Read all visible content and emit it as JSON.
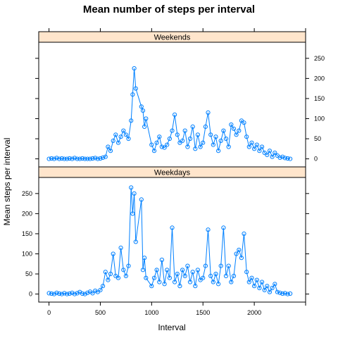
{
  "chart_data": {
    "type": "line",
    "title": "Mean number of steps per interval",
    "xlabel": "Interval",
    "ylabel": "Mean steps per interval",
    "xlim": [
      -100,
      2500
    ],
    "ylim": [
      -20,
      290
    ],
    "x_ticks": [
      0,
      500,
      1000,
      1500,
      2000
    ],
    "y_ticks": [
      0,
      50,
      100,
      150,
      200,
      250
    ],
    "grid": false,
    "strip_color": "#ffe5cc",
    "series_color": "#0080ff",
    "panels": [
      {
        "name": "Weekends",
        "x": [
          0,
          25,
          50,
          75,
          100,
          125,
          150,
          175,
          200,
          225,
          250,
          275,
          300,
          325,
          350,
          375,
          400,
          425,
          450,
          475,
          500,
          525,
          550,
          575,
          600,
          625,
          650,
          675,
          700,
          725,
          750,
          775,
          800,
          815,
          830,
          845,
          900,
          915,
          930,
          945,
          1000,
          1025,
          1050,
          1075,
          1100,
          1125,
          1150,
          1175,
          1200,
          1225,
          1250,
          1275,
          1300,
          1325,
          1350,
          1375,
          1400,
          1425,
          1450,
          1475,
          1500,
          1525,
          1550,
          1575,
          1600,
          1625,
          1650,
          1675,
          1700,
          1725,
          1750,
          1775,
          1800,
          1825,
          1850,
          1875,
          1900,
          1925,
          1950,
          1975,
          2000,
          2025,
          2050,
          2075,
          2100,
          2125,
          2150,
          2175,
          2200,
          2225,
          2250,
          2275,
          2300,
          2325,
          2350
        ],
        "y": [
          0,
          1,
          0,
          2,
          0,
          1,
          0,
          0,
          1,
          0,
          2,
          0,
          0,
          1,
          0,
          0,
          0,
          1,
          2,
          0,
          1,
          3,
          5,
          30,
          20,
          45,
          60,
          40,
          55,
          70,
          60,
          50,
          95,
          160,
          225,
          175,
          130,
          120,
          80,
          100,
          35,
          20,
          40,
          55,
          30,
          28,
          35,
          50,
          70,
          110,
          60,
          40,
          45,
          70,
          30,
          50,
          80,
          25,
          60,
          30,
          40,
          80,
          115,
          60,
          35,
          55,
          20,
          45,
          70,
          50,
          30,
          85,
          75,
          60,
          70,
          95,
          90,
          55,
          30,
          40,
          25,
          35,
          20,
          30,
          15,
          10,
          20,
          5,
          15,
          8,
          3,
          5,
          2,
          1,
          0
        ]
      },
      {
        "name": "Weekdays",
        "x": [
          0,
          25,
          50,
          75,
          100,
          125,
          150,
          175,
          200,
          225,
          250,
          275,
          300,
          325,
          350,
          375,
          400,
          425,
          450,
          475,
          500,
          525,
          550,
          575,
          600,
          625,
          650,
          675,
          700,
          725,
          750,
          775,
          800,
          815,
          830,
          845,
          900,
          915,
          930,
          945,
          1000,
          1025,
          1050,
          1075,
          1100,
          1125,
          1150,
          1175,
          1200,
          1225,
          1250,
          1275,
          1300,
          1325,
          1350,
          1375,
          1400,
          1425,
          1450,
          1475,
          1500,
          1525,
          1550,
          1575,
          1600,
          1625,
          1650,
          1675,
          1700,
          1725,
          1750,
          1775,
          1800,
          1825,
          1850,
          1875,
          1900,
          1925,
          1950,
          1975,
          2000,
          2025,
          2050,
          2075,
          2100,
          2125,
          2150,
          2175,
          2200,
          2225,
          2250,
          2275,
          2300,
          2325,
          2350
        ],
        "y": [
          2,
          1,
          0,
          3,
          1,
          0,
          2,
          0,
          1,
          3,
          0,
          2,
          5,
          1,
          0,
          3,
          6,
          2,
          8,
          5,
          10,
          20,
          55,
          35,
          50,
          100,
          45,
          40,
          115,
          60,
          45,
          70,
          265,
          200,
          250,
          130,
          235,
          60,
          90,
          40,
          20,
          40,
          60,
          30,
          85,
          25,
          60,
          40,
          165,
          30,
          50,
          20,
          60,
          45,
          70,
          30,
          55,
          20,
          60,
          35,
          40,
          70,
          160,
          45,
          30,
          50,
          25,
          70,
          165,
          45,
          70,
          30,
          45,
          100,
          110,
          90,
          150,
          55,
          30,
          40,
          20,
          35,
          15,
          30,
          10,
          20,
          5,
          15,
          25,
          5,
          3,
          1,
          2,
          0,
          1
        ]
      }
    ]
  }
}
